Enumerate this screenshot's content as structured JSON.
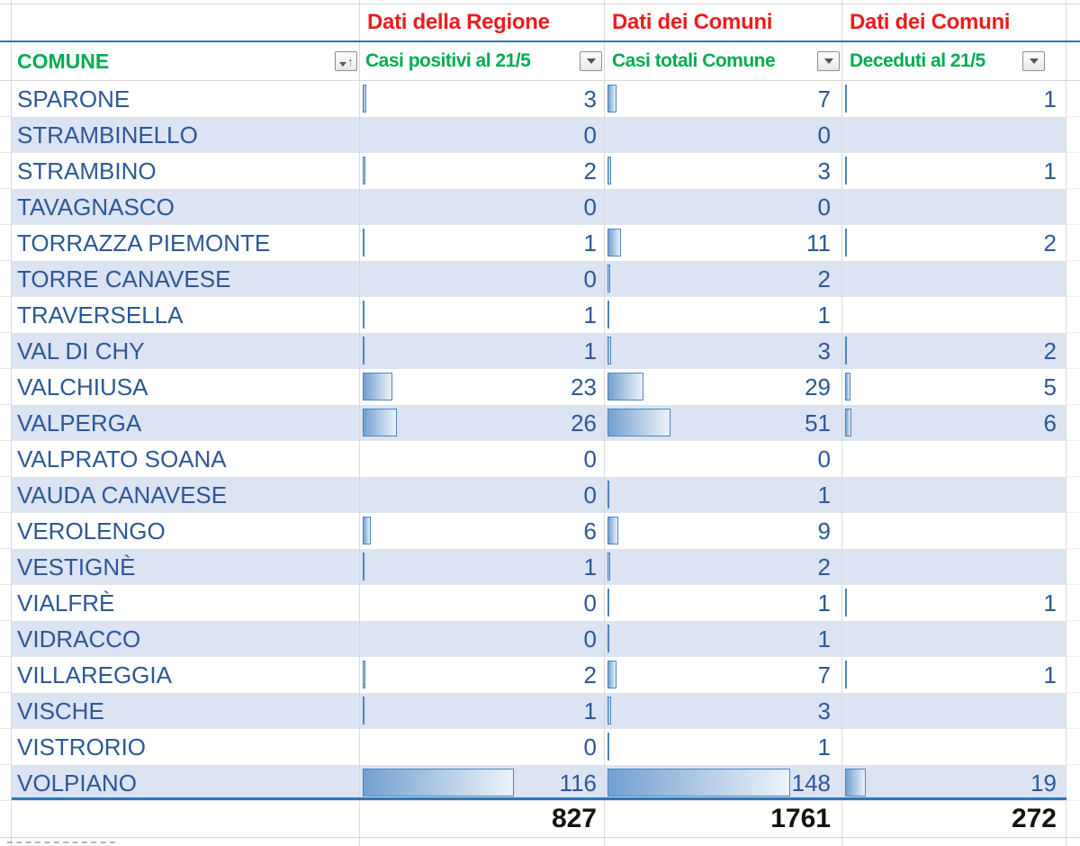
{
  "columns": {
    "comune": {
      "group": "",
      "label": "COMUNE"
    },
    "positivi": {
      "group": "Dati della Regione",
      "label": "Casi positivi al 21/5"
    },
    "totali": {
      "group": "Dati dei Comuni",
      "label": "Casi totali Comune"
    },
    "deceduti": {
      "group": "Dati dei Comuni",
      "label": "Deceduti al 21/5"
    }
  },
  "icons": {
    "filter_dropdown": "down-triangle",
    "sort_ascending": "up-arrow"
  },
  "rows": [
    {
      "comune": "SPARONE",
      "positivi": 3,
      "totali": 7,
      "deceduti": 1
    },
    {
      "comune": "STRAMBINELLO",
      "positivi": 0,
      "totali": 0,
      "deceduti": null
    },
    {
      "comune": "STRAMBINO",
      "positivi": 2,
      "totali": 3,
      "deceduti": 1
    },
    {
      "comune": "TAVAGNASCO",
      "positivi": 0,
      "totali": 0,
      "deceduti": null
    },
    {
      "comune": "TORRAZZA PIEMONTE",
      "positivi": 1,
      "totali": 11,
      "deceduti": 2
    },
    {
      "comune": "TORRE CANAVESE",
      "positivi": 0,
      "totali": 2,
      "deceduti": null
    },
    {
      "comune": "TRAVERSELLA",
      "positivi": 1,
      "totali": 1,
      "deceduti": null
    },
    {
      "comune": "VAL DI CHY",
      "positivi": 1,
      "totali": 3,
      "deceduti": 2
    },
    {
      "comune": "VALCHIUSA",
      "positivi": 23,
      "totali": 29,
      "deceduti": 5
    },
    {
      "comune": "VALPERGA",
      "positivi": 26,
      "totali": 51,
      "deceduti": 6
    },
    {
      "comune": "VALPRATO SOANA",
      "positivi": 0,
      "totali": 0,
      "deceduti": null
    },
    {
      "comune": "VAUDA CANAVESE",
      "positivi": 0,
      "totali": 1,
      "deceduti": null
    },
    {
      "comune": "VEROLENGO",
      "positivi": 6,
      "totali": 9,
      "deceduti": null
    },
    {
      "comune": "VESTIGNÈ",
      "positivi": 1,
      "totali": 2,
      "deceduti": null
    },
    {
      "comune": "VIALFRÈ",
      "positivi": 0,
      "totali": 1,
      "deceduti": 1
    },
    {
      "comune": "VIDRACCO",
      "positivi": 0,
      "totali": 1,
      "deceduti": null
    },
    {
      "comune": "VILLAREGGIA",
      "positivi": 2,
      "totali": 7,
      "deceduti": 1
    },
    {
      "comune": "VISCHE",
      "positivi": 1,
      "totali": 3,
      "deceduti": null
    },
    {
      "comune": "VISTRORIO",
      "positivi": 0,
      "totali": 1,
      "deceduti": null
    },
    {
      "comune": "VOLPIANO",
      "positivi": 116,
      "totali": 148,
      "deceduti": 19
    }
  ],
  "totals": {
    "positivi": "827",
    "totali": "1761",
    "deceduti": "272"
  },
  "colors": {
    "band": "#dce3f3",
    "gridline": "#d9d9d9",
    "accent_border": "#2e75b6",
    "text_blue": "#2d5796",
    "header_red": "#ed1c1c",
    "header_green": "#00ac4f",
    "bar_border": "#4f83ba",
    "bar_fill_start": "#72a0d0",
    "bar_fill_end": "#edf3fa"
  }
}
